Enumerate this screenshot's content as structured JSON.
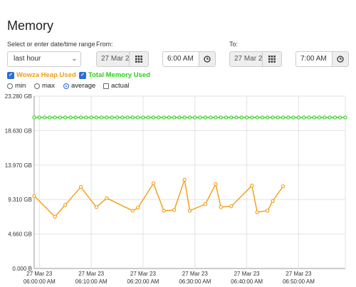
{
  "page": {
    "title": "Memory"
  },
  "range": {
    "label": "Select or enter date/time range",
    "selected": "last hour"
  },
  "from": {
    "label": "From:",
    "date": "27 Mar 2",
    "time": "6:00 AM"
  },
  "to": {
    "label": "To:",
    "date": "27 Mar 2",
    "time": "7:00 AM"
  },
  "series_toggles": [
    {
      "label": "Wowza Heap Used",
      "checked": true,
      "color": "#f39c12"
    },
    {
      "label": "Total Memory Used",
      "checked": true,
      "color": "#2ecc1a"
    }
  ],
  "options": [
    {
      "label": "min",
      "type": "radio",
      "selected": false
    },
    {
      "label": "max",
      "type": "radio",
      "selected": false
    },
    {
      "label": "average",
      "type": "radio",
      "selected": true
    },
    {
      "label": "actual",
      "type": "checkbox",
      "selected": false
    }
  ],
  "chart_data": {
    "type": "line",
    "yticks": [
      "0.000 B",
      "4.660 GB",
      "9.310 GB",
      "13.970 GB",
      "18.630 GB",
      "23.280 GB"
    ],
    "ylim": [
      0,
      23.28
    ],
    "xlim": [
      -1,
      59
    ],
    "xticks": [
      {
        "date": "27 Mar 23",
        "time": "06:00:00 AM",
        "minute": 0
      },
      {
        "date": "27 Mar 23",
        "time": "06:10:00 AM",
        "minute": 10
      },
      {
        "date": "27 Mar 23",
        "time": "06:20:00 AM",
        "minute": 20
      },
      {
        "date": "27 Mar 23",
        "time": "06:30:00 AM",
        "minute": 30
      },
      {
        "date": "27 Mar 23",
        "time": "06:40:00 AM",
        "minute": 40
      },
      {
        "date": "27 Mar 23",
        "time": "06:50:00 AM",
        "minute": 50
      }
    ],
    "grid": true,
    "series": [
      {
        "name": "Total Memory Used",
        "color": "#2ecc1a",
        "x": [
          -1,
          0,
          1,
          2,
          3,
          4,
          5,
          6,
          7,
          8,
          9,
          10,
          11,
          12,
          13,
          14,
          15,
          16,
          17,
          18,
          19,
          20,
          21,
          22,
          23,
          24,
          25,
          26,
          27,
          28,
          29,
          30,
          31,
          32,
          33,
          34,
          35,
          36,
          37,
          38,
          39,
          40,
          41,
          42,
          43,
          44,
          45,
          46,
          47,
          48,
          49,
          50,
          51,
          52,
          53,
          54,
          55,
          56,
          57,
          58,
          59
        ],
        "y": [
          20.4,
          20.4,
          20.4,
          20.4,
          20.4,
          20.4,
          20.4,
          20.4,
          20.4,
          20.4,
          20.4,
          20.4,
          20.4,
          20.4,
          20.4,
          20.4,
          20.4,
          20.4,
          20.4,
          20.4,
          20.4,
          20.4,
          20.4,
          20.4,
          20.4,
          20.4,
          20.4,
          20.4,
          20.4,
          20.4,
          20.4,
          20.4,
          20.4,
          20.4,
          20.4,
          20.4,
          20.4,
          20.4,
          20.4,
          20.4,
          20.4,
          20.4,
          20.4,
          20.4,
          20.4,
          20.4,
          20.4,
          20.4,
          20.4,
          20.4,
          20.4,
          20.4,
          20.4,
          20.4,
          20.4,
          20.4,
          20.4,
          20.4,
          20.4,
          20.4,
          20.4
        ]
      },
      {
        "name": "Wowza Heap Used",
        "color": "#f39c12",
        "x": [
          -1,
          3,
          5,
          8,
          11,
          13,
          18,
          19,
          22,
          24,
          26,
          28,
          29,
          32,
          34,
          35,
          37,
          41,
          42,
          44,
          45,
          47
        ],
        "y": [
          9.8,
          7.0,
          8.6,
          11.0,
          8.3,
          9.5,
          7.8,
          8.2,
          11.5,
          7.8,
          7.9,
          12.0,
          7.8,
          8.7,
          11.4,
          8.3,
          8.4,
          11.2,
          7.6,
          7.8,
          9.1,
          11.1
        ]
      }
    ]
  }
}
